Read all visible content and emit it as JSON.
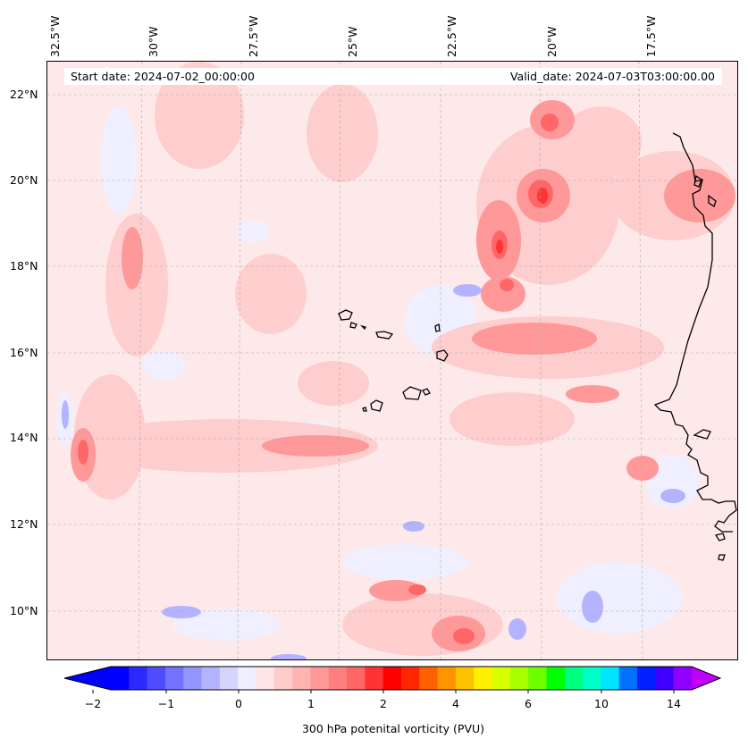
{
  "map": {
    "start_date": "Start date: 2024-07-02_00:00:00",
    "valid_date": "Valid_date: 2024-07-03T03:00:00.00",
    "longitude_labels": [
      "32.5°W",
      "30°W",
      "27.5°W",
      "25°W",
      "22.5°W",
      "20°W",
      "17.5°W"
    ],
    "latitude_labels": [
      "22°N",
      "20°N",
      "18°N",
      "16°N",
      "14°N",
      "12°N",
      "10°N"
    ],
    "lat_range": [
      8.9,
      22.8
    ],
    "lon_range": [
      -33.0,
      -15.6
    ]
  },
  "colorbar": {
    "title": "300 hPa potenital vorticity (PVU)",
    "tick_labels": [
      "−2",
      "−1",
      "0",
      "1",
      "2",
      "4",
      "6",
      "10",
      "14"
    ],
    "colors": [
      "#0000ff",
      "#2a2aff",
      "#4d4dff",
      "#7373ff",
      "#9494ff",
      "#b3b3ff",
      "#d4d4ff",
      "#efefff",
      "#ffe6e6",
      "#ffcccc",
      "#ffb3b3",
      "#ff9999",
      "#ff7f7f",
      "#ff6666",
      "#ff3333",
      "#ff0000",
      "#ff2800",
      "#ff6000",
      "#ff9400",
      "#ffc200",
      "#fff000",
      "#d8ff00",
      "#a8ff00",
      "#6eff00",
      "#00ff00",
      "#00ff80",
      "#00ffc8",
      "#00e5ff",
      "#0070ff",
      "#0020ff",
      "#4000ff",
      "#9000ff"
    ],
    "under_color": "#0000ff",
    "over_color": "#c000ff"
  }
}
